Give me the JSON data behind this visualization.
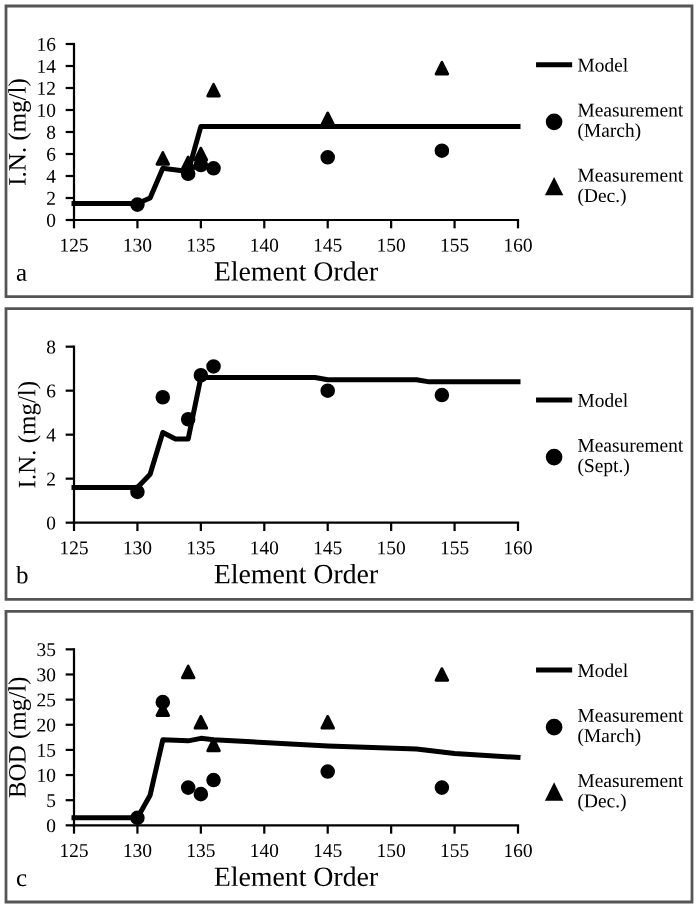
{
  "chart_data": [
    {
      "type": "line",
      "xlabel": "Element Order",
      "ylabel": "I.N. (mg/l)",
      "xlim": [
        125,
        160
      ],
      "xticks": [
        125,
        130,
        135,
        140,
        145,
        150,
        155,
        160
      ],
      "ylim": [
        0,
        16
      ],
      "yticks": [
        0,
        2,
        4,
        6,
        8,
        10,
        12,
        14,
        16
      ],
      "legend": "right",
      "grid": false,
      "annotations": [
        "a"
      ],
      "series": [
        {
          "name": "Model",
          "type": "line",
          "color": "#000000",
          "marker": "none",
          "line_style": "solid",
          "x": [
            125,
            130,
            131,
            132,
            134,
            135,
            160
          ],
          "values": [
            1.5,
            1.5,
            2,
            4.7,
            4.4,
            8.5,
            8.5
          ]
        },
        {
          "name": "Measurement\n(March)",
          "type": "scatter",
          "color": "#000000",
          "marker": "circle",
          "x": [
            130,
            132,
            134,
            135,
            136,
            145,
            154
          ],
          "values": [
            1.4,
            null,
            4.2,
            5.0,
            4.7,
            5.7,
            6.3
          ]
        },
        {
          "name": "Measurement\n(Dec.)",
          "type": "scatter",
          "color": "#000000",
          "marker": "triangle",
          "x": [
            132,
            134,
            135,
            136,
            145,
            154
          ],
          "values": [
            5.6,
            5.2,
            6.0,
            11.8,
            9.2,
            13.8
          ]
        }
      ]
    },
    {
      "type": "line",
      "xlabel": "Element Order",
      "ylabel": "I.N. (mg/l)",
      "xlim": [
        125,
        160
      ],
      "xticks": [
        125,
        130,
        135,
        140,
        145,
        150,
        155,
        160
      ],
      "ylim": [
        0,
        8
      ],
      "yticks": [
        0,
        2,
        4,
        6,
        8
      ],
      "legend": "right",
      "grid": false,
      "annotations": [
        "b"
      ],
      "series": [
        {
          "name": "Model",
          "type": "line",
          "color": "#000000",
          "marker": "none",
          "line_style": "solid",
          "x": [
            125,
            130,
            131,
            132,
            133,
            134,
            135,
            136,
            144,
            145,
            152,
            153,
            160
          ],
          "values": [
            1.6,
            1.6,
            2.2,
            4.1,
            3.8,
            3.8,
            6.6,
            6.6,
            6.6,
            6.5,
            6.5,
            6.4,
            6.4
          ]
        },
        {
          "name": "Measurement\n(Sept.)",
          "type": "scatter",
          "color": "#000000",
          "marker": "circle",
          "x": [
            130,
            132,
            134,
            135,
            136,
            145,
            154
          ],
          "values": [
            1.4,
            5.7,
            4.7,
            6.7,
            7.1,
            6.0,
            5.8
          ]
        }
      ]
    },
    {
      "type": "line",
      "xlabel": "Element Order",
      "ylabel": "BOD (mg/l)",
      "xlim": [
        125,
        160
      ],
      "xticks": [
        125,
        130,
        135,
        140,
        145,
        150,
        155,
        160
      ],
      "ylim": [
        0,
        35
      ],
      "yticks": [
        0,
        5,
        10,
        15,
        20,
        25,
        30,
        35
      ],
      "legend": "right",
      "grid": false,
      "annotations": [
        "c"
      ],
      "series": [
        {
          "name": "Model",
          "type": "line",
          "color": "#000000",
          "marker": "none",
          "line_style": "solid",
          "x": [
            125,
            130,
            131,
            132,
            134,
            135,
            136,
            145,
            152,
            155,
            160
          ],
          "values": [
            1.5,
            1.5,
            6,
            17,
            16.8,
            17.3,
            17,
            15.8,
            15.2,
            14.3,
            13.5
          ]
        },
        {
          "name": "Measurement\n(March)",
          "type": "scatter",
          "color": "#000000",
          "marker": "circle",
          "x": [
            130,
            132,
            134,
            135,
            136,
            145,
            154
          ],
          "values": [
            1.5,
            24.5,
            7.5,
            6.2,
            9,
            10.7,
            7.5
          ]
        },
        {
          "name": "Measurement\n(Dec.)",
          "type": "scatter",
          "color": "#000000",
          "marker": "triangle",
          "x": [
            132,
            134,
            135,
            136,
            145,
            154
          ],
          "values": [
            23,
            30.5,
            20.5,
            16,
            20.5,
            30
          ]
        }
      ]
    }
  ]
}
